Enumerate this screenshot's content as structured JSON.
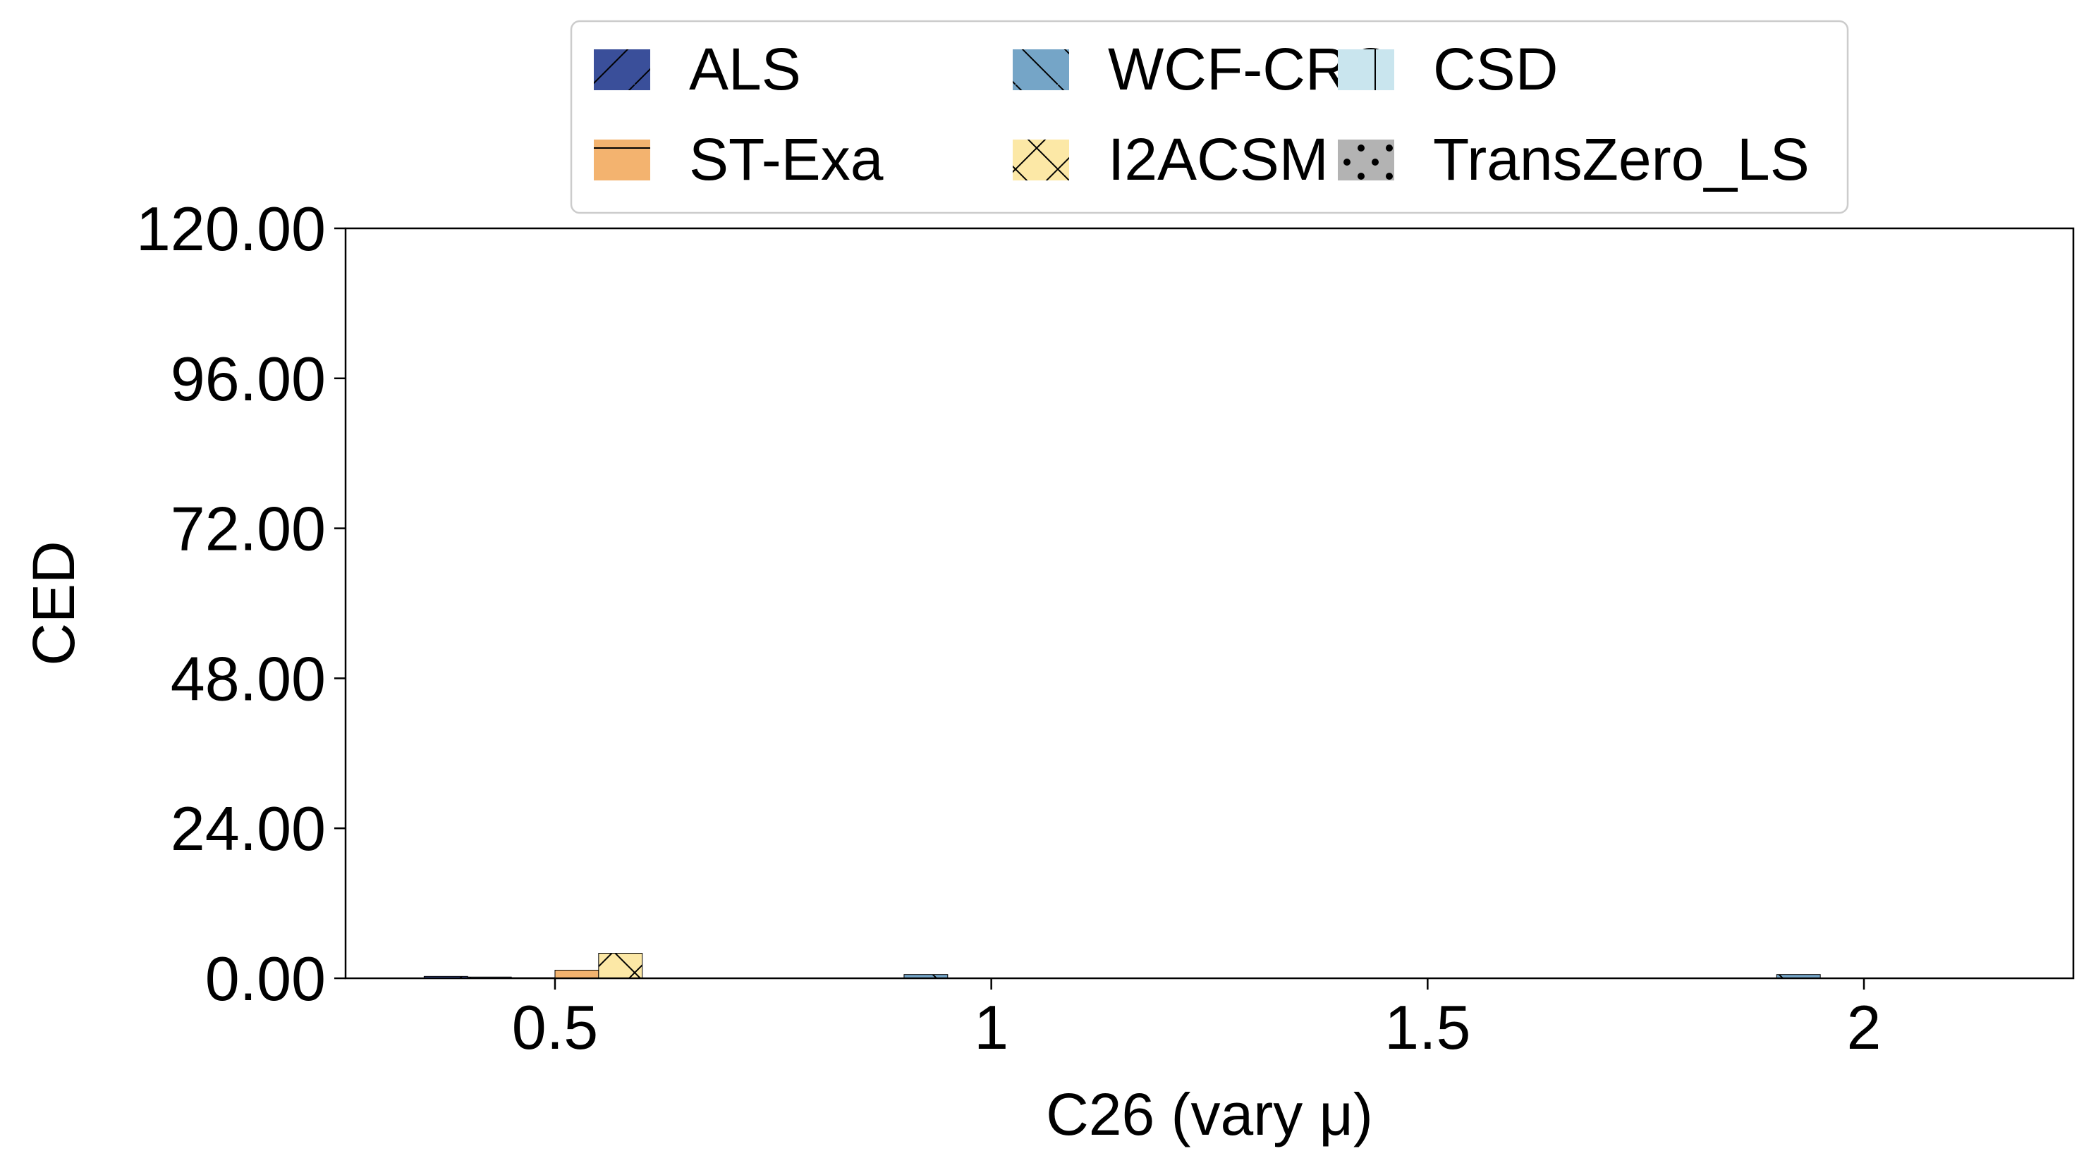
{
  "chart_data": {
    "type": "bar",
    "title": "",
    "xlabel": "C26 (vary μ)",
    "ylabel": "CED",
    "x_ticks": [
      "0.5",
      "1",
      "1.5",
      "2"
    ],
    "x_tick_values": [
      0.5,
      1,
      1.5,
      2
    ],
    "xlim": [
      0.26,
      2.24
    ],
    "ylim": [
      0,
      120
    ],
    "y_ticks": [
      "0.00",
      "24.00",
      "48.00",
      "72.00",
      "96.00",
      "120.00"
    ],
    "y_tick_values": [
      0,
      24,
      48,
      72,
      96,
      120
    ],
    "grid": false,
    "legend_position": "top-center",
    "legend_columns": 3,
    "categories": [
      0.5,
      1,
      2
    ],
    "series": [
      {
        "name": "ALS",
        "color": "#3a4f9a",
        "hatch": "forward-slash",
        "values": [
          0.3,
          null,
          null
        ]
      },
      {
        "name": "WCF-CRC",
        "color": "#75a5c7",
        "hatch": "back-slash",
        "values": [
          0.2,
          0.6,
          0.6
        ]
      },
      {
        "name": "CSD",
        "color": "#c9e5ee",
        "hatch": "vertical",
        "values": [
          0.1,
          null,
          null
        ]
      },
      {
        "name": "ST-Exa",
        "color": "#f3b36f",
        "hatch": "horizontal",
        "values": [
          1.3,
          null,
          null
        ]
      },
      {
        "name": "I2ACSM",
        "color": "#fce8a6",
        "hatch": "cross",
        "values": [
          4.0,
          null,
          null
        ]
      },
      {
        "name": "TransZero_LS",
        "color": "#b3b3b3",
        "hatch": "dots",
        "values": [
          null,
          null,
          null
        ]
      }
    ]
  }
}
